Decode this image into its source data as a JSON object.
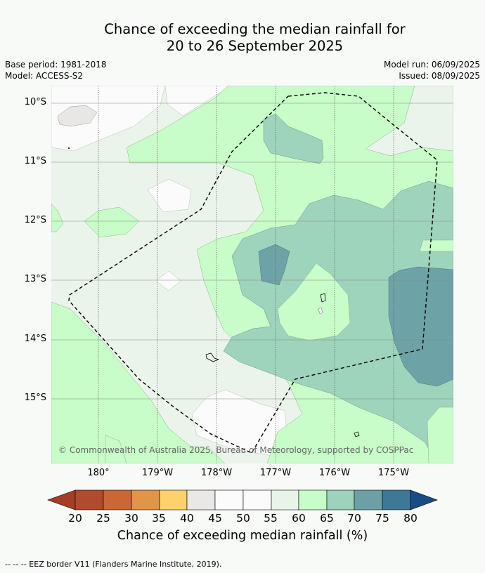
{
  "title": {
    "line1": "Chance of exceeding the median rainfall for",
    "line2": "20 to 26 September 2025"
  },
  "meta": {
    "base_period": "Base period: 1981-2018",
    "model": "Model: ACCESS-S2",
    "model_run": "Model run: 06/09/2025",
    "issued": "Issued: 08/09/2025"
  },
  "map": {
    "lat_labels": [
      "10°S",
      "11°S",
      "12°S",
      "13°S",
      "14°S",
      "15°S"
    ],
    "lon_labels": [
      "180°",
      "179°W",
      "178°W",
      "177°W",
      "176°W",
      "175°W"
    ],
    "copyright": "© Commonwealth of Australia 2025, Bureau of Meteorology, supported by COSPPac",
    "eez_border_style": "dashed black",
    "colors": {
      "band_50_55": "#fafbfa",
      "band_55_60": "#eaf4ea",
      "band_60_65": "#c8fcc8",
      "band_65_70": "#9ed3bc",
      "band_70_75": "#6da2a6",
      "band_45_50": "#e8e7e6"
    }
  },
  "colorbar": {
    "ticks": [
      "20",
      "25",
      "30",
      "35",
      "40",
      "45",
      "50",
      "55",
      "60",
      "65",
      "70",
      "75",
      "80"
    ],
    "colors": [
      "#a53e26",
      "#b24a2d",
      "#cb6636",
      "#e09548",
      "#fdd16b",
      "#e9e8e6",
      "#fbfbfb",
      "#fbfbfb",
      "#e9f4e9",
      "#c8fcc8",
      "#9dd2bc",
      "#6da0a5",
      "#3e7897",
      "#174c86"
    ],
    "label": "Chance of exceeding median rainfall (%)"
  },
  "footer": "--  --  -- EEZ border V11 (Flanders Marine Institute, 2019)."
}
